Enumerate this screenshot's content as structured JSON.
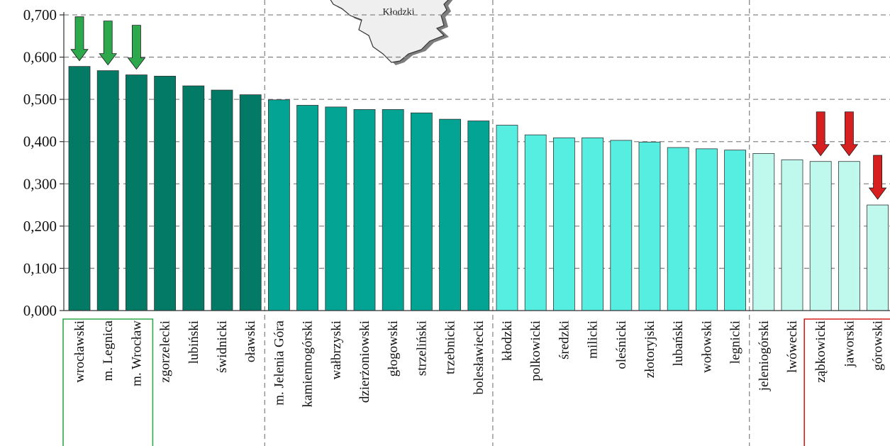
{
  "map_inset": {
    "label": "Kłodzki"
  },
  "colors": {
    "group1": "#027A66",
    "group2": "#04A494",
    "group3": "#55EEE0",
    "group4": "#BFF8EC",
    "up_arrow": "#2EA84D",
    "down_arrow": "#D81F1F",
    "top_box": "#2EA84D",
    "bottom_box": "#D81F1F",
    "grid": "#888888"
  },
  "chart_data": {
    "type": "bar",
    "title": "",
    "xlabel": "",
    "ylabel": "",
    "ylim": [
      0,
      0.7
    ],
    "yticks": [
      "0,000",
      "0,100",
      "0,200",
      "0,300",
      "0,400",
      "0,500",
      "0,600",
      "0,700"
    ],
    "grid": true,
    "categories": [
      "wrocławski",
      "m. Legnica",
      "m. Wrocław",
      "zgorzelecki",
      "lubiński",
      "świdnicki",
      "oławski",
      "m. Jelenia Góra",
      "kamiennogórski",
      "wałbrzyski",
      "dzierżoniowski",
      "głogowski",
      "strzeliński",
      "trzebnicki",
      "bolesławiecki",
      "kłodzki",
      "polkowicki",
      "średzki",
      "milicki",
      "oleśnicki",
      "złotoryjski",
      "lubański",
      "wołowski",
      "legnicki",
      "jeleniogórski",
      "lwówecki",
      "ząbkowicki",
      "jaworski",
      "górowski"
    ],
    "values": [
      0.578,
      0.568,
      0.558,
      0.555,
      0.532,
      0.522,
      0.511,
      0.499,
      0.486,
      0.482,
      0.476,
      0.476,
      0.468,
      0.453,
      0.449,
      0.439,
      0.416,
      0.409,
      0.409,
      0.403,
      0.399,
      0.386,
      0.383,
      0.38,
      0.372,
      0.357,
      0.353,
      0.353,
      0.25
    ],
    "groups": [
      1,
      1,
      1,
      1,
      1,
      1,
      1,
      2,
      2,
      2,
      2,
      2,
      2,
      2,
      2,
      3,
      3,
      3,
      3,
      3,
      3,
      3,
      3,
      3,
      4,
      4,
      4,
      4,
      4
    ],
    "highlight_top": [
      "wrocławski",
      "m. Legnica",
      "m. Wrocław"
    ],
    "highlight_bottom": [
      "ząbkowicki",
      "jaworski",
      "górowski"
    ]
  }
}
